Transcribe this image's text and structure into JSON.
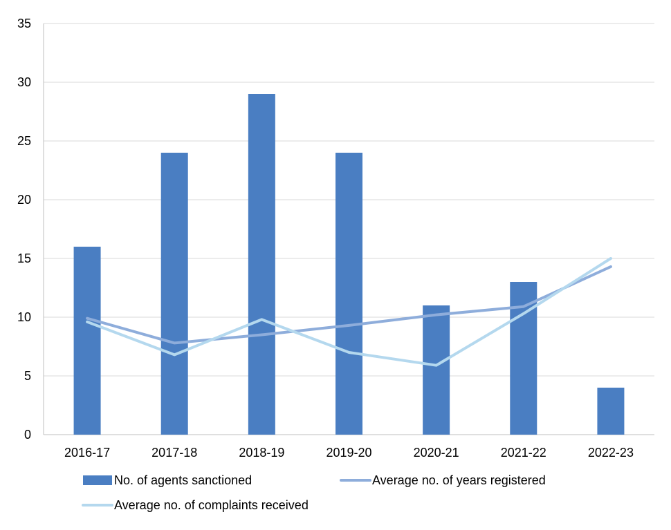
{
  "chart_data": {
    "type": "bar",
    "title": "",
    "xlabel": "",
    "ylabel": "",
    "ylim": [
      0,
      35
    ],
    "yticks": [
      0,
      5,
      10,
      15,
      20,
      25,
      30,
      35
    ],
    "grid": true,
    "legend_position": "bottom",
    "categories": [
      "2016-17",
      "2017-18",
      "2018-19",
      "2019-20",
      "2020-21",
      "2021-22",
      "2022-23"
    ],
    "series": [
      {
        "name": "No. of agents sanctioned",
        "kind": "bar",
        "color": "#4a7ec2",
        "values": [
          16,
          24,
          29,
          24,
          11,
          13,
          4
        ]
      },
      {
        "name": "Average no. of years registered",
        "kind": "line",
        "color": "#8eaddb",
        "values": [
          9.9,
          7.8,
          8.5,
          9.3,
          10.2,
          10.9,
          14.3
        ]
      },
      {
        "name": "Average no. of complaints received",
        "kind": "line",
        "color": "#b4d8ee",
        "values": [
          9.6,
          6.8,
          9.8,
          7.0,
          5.9,
          10.3,
          15.0
        ]
      }
    ]
  }
}
